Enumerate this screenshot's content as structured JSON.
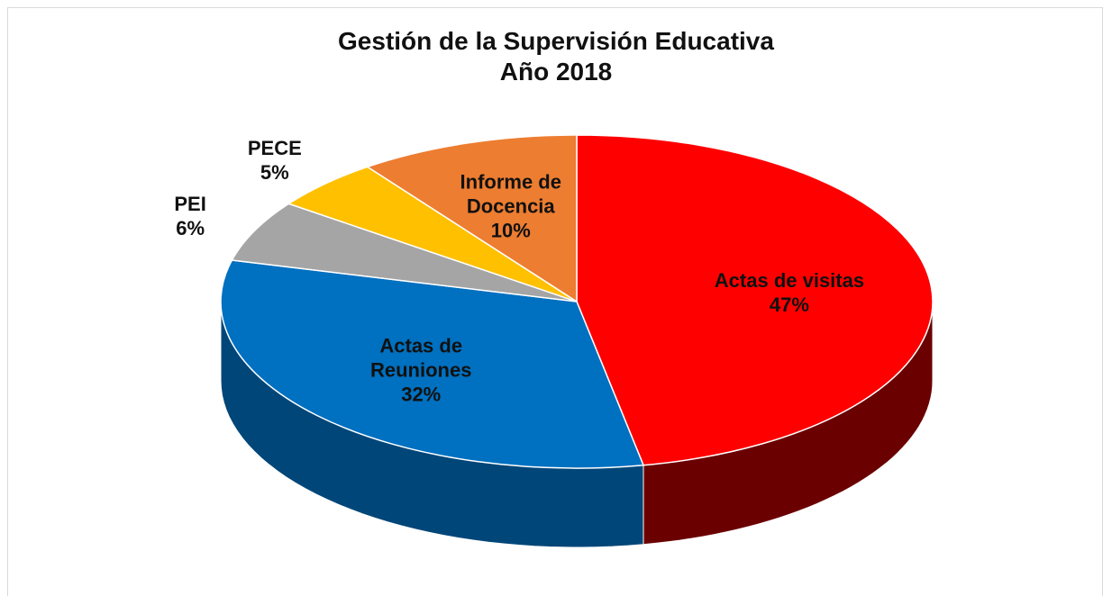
{
  "chart_data": {
    "type": "pie",
    "title": "Gestión de la Supervisión Educativa",
    "subtitle": "Año 2018",
    "categories": [
      "Actas de visitas",
      "Actas de Reuniones",
      "PEI",
      "PECE",
      "Informe de Docencia"
    ],
    "values": [
      47,
      32,
      6,
      5,
      10
    ],
    "value_labels": [
      "47%",
      "32%",
      "6%",
      "5%",
      "10%"
    ],
    "colors": [
      "#ff0000",
      "#0070c0",
      "#a5a5a5",
      "#ffc000",
      "#ed7d31"
    ],
    "side_colors": [
      "#6b0000",
      "#004678",
      "#6e6e6e",
      "#a87e00",
      "#9c4e17"
    ]
  }
}
